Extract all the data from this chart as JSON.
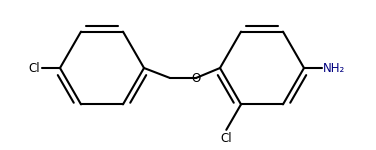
{
  "bg_color": "#ffffff",
  "line_color": "#000000",
  "line_width": 1.5,
  "label_color_Cl": "#000000",
  "label_color_O": "#000000",
  "label_color_NH2": "#000080",
  "font_size": 8.5,
  "cl_left_label": "Cl",
  "cl_right_label": "Cl",
  "o_label": "O",
  "nh2_label": "NH₂",
  "figsize": [
    3.76,
    1.5
  ],
  "dpi": 100
}
